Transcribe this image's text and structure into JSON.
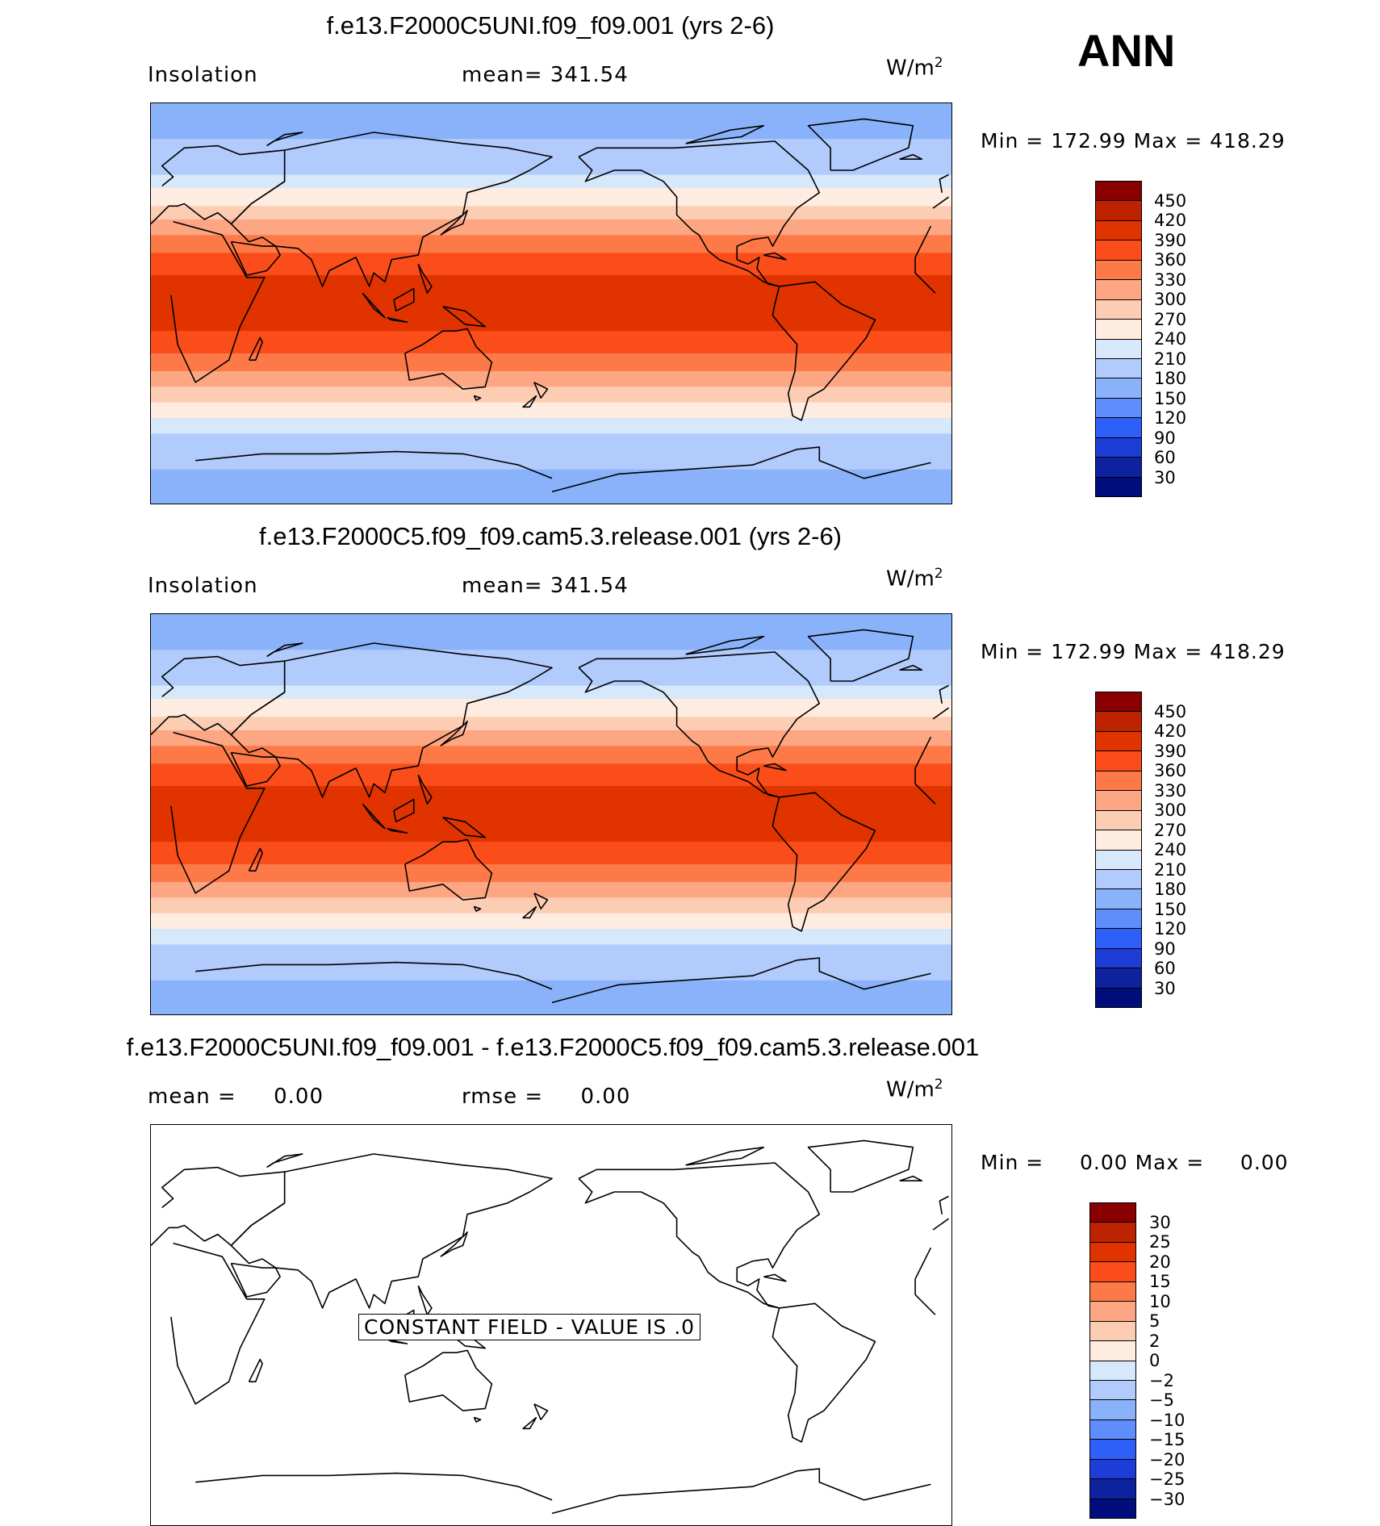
{
  "season_label": "ANN",
  "panels": [
    {
      "title": "f.e13.F2000C5UNI.f09_f09.001 (yrs 2-6)",
      "left_label": "Insolation",
      "center_label": "mean= 341.54",
      "units_base": "W/m",
      "units_exp": "2",
      "minmax": "Min = 172.99 Max = 418.29",
      "colorbar_labels": [
        "450",
        "420",
        "390",
        "360",
        "330",
        "300",
        "270",
        "240",
        "210",
        "180",
        "150",
        "120",
        "90",
        "60",
        "30"
      ],
      "map_bands": [
        {
          "lat_top": 90,
          "lat_bottom": 74,
          "level": "150-180"
        },
        {
          "lat_top": 74,
          "lat_bottom": 58,
          "level": "180-210"
        },
        {
          "lat_top": 58,
          "lat_bottom": 52,
          "level": "210-240"
        },
        {
          "lat_top": 52,
          "lat_bottom": 44,
          "level": "240-270"
        },
        {
          "lat_top": 44,
          "lat_bottom": 38,
          "level": "270-300"
        },
        {
          "lat_top": 38,
          "lat_bottom": 31,
          "level": "300-330"
        },
        {
          "lat_top": 31,
          "lat_bottom": 23,
          "level": "330-360"
        },
        {
          "lat_top": 23,
          "lat_bottom": 13,
          "level": "360-390"
        },
        {
          "lat_top": 13,
          "lat_bottom": -12,
          "level": "390-420"
        },
        {
          "lat_top": -12,
          "lat_bottom": -22,
          "level": "360-390"
        },
        {
          "lat_top": -22,
          "lat_bottom": -30,
          "level": "330-360"
        },
        {
          "lat_top": -30,
          "lat_bottom": -37,
          "level": "300-330"
        },
        {
          "lat_top": -37,
          "lat_bottom": -44,
          "level": "270-300"
        },
        {
          "lat_top": -44,
          "lat_bottom": -51,
          "level": "240-270"
        },
        {
          "lat_top": -51,
          "lat_bottom": -58,
          "level": "210-240"
        },
        {
          "lat_top": -58,
          "lat_bottom": -74,
          "level": "180-210"
        },
        {
          "lat_top": -74,
          "lat_bottom": -90,
          "level": "150-180"
        }
      ]
    },
    {
      "title": "f.e13.F2000C5.f09_f09.cam5.3.release.001 (yrs 2-6)",
      "left_label": "Insolation",
      "center_label": "mean= 341.54",
      "units_base": "W/m",
      "units_exp": "2",
      "minmax": "Min = 172.99 Max = 418.29",
      "colorbar_labels": [
        "450",
        "420",
        "390",
        "360",
        "330",
        "300",
        "270",
        "240",
        "210",
        "180",
        "150",
        "120",
        "90",
        "60",
        "30"
      ],
      "map_bands": [
        {
          "lat_top": 90,
          "lat_bottom": 74,
          "level": "150-180"
        },
        {
          "lat_top": 74,
          "lat_bottom": 58,
          "level": "180-210"
        },
        {
          "lat_top": 58,
          "lat_bottom": 52,
          "level": "210-240"
        },
        {
          "lat_top": 52,
          "lat_bottom": 44,
          "level": "240-270"
        },
        {
          "lat_top": 44,
          "lat_bottom": 38,
          "level": "270-300"
        },
        {
          "lat_top": 38,
          "lat_bottom": 31,
          "level": "300-330"
        },
        {
          "lat_top": 31,
          "lat_bottom": 23,
          "level": "330-360"
        },
        {
          "lat_top": 23,
          "lat_bottom": 13,
          "level": "360-390"
        },
        {
          "lat_top": 13,
          "lat_bottom": -12,
          "level": "390-420"
        },
        {
          "lat_top": -12,
          "lat_bottom": -22,
          "level": "360-390"
        },
        {
          "lat_top": -22,
          "lat_bottom": -30,
          "level": "330-360"
        },
        {
          "lat_top": -30,
          "lat_bottom": -37,
          "level": "300-330"
        },
        {
          "lat_top": -37,
          "lat_bottom": -44,
          "level": "270-300"
        },
        {
          "lat_top": -44,
          "lat_bottom": -51,
          "level": "240-270"
        },
        {
          "lat_top": -51,
          "lat_bottom": -58,
          "level": "210-240"
        },
        {
          "lat_top": -58,
          "lat_bottom": -74,
          "level": "180-210"
        },
        {
          "lat_top": -74,
          "lat_bottom": -90,
          "level": "150-180"
        }
      ]
    },
    {
      "title": "f.e13.F2000C5UNI.f09_f09.001 - f.e13.F2000C5.f09_f09.cam5.3.release.001",
      "left_label": "mean =     0.00",
      "center_label": "rmse =     0.00",
      "units_base": "W/m",
      "units_exp": "2",
      "minmax": "Min =     0.00 Max =     0.00",
      "colorbar_labels": [
        "30",
        "25",
        "20",
        "15",
        "10",
        "5",
        "2",
        "0",
        "−2",
        "−5",
        "−10",
        "−15",
        "−20",
        "−25",
        "−30"
      ],
      "constant_field_text": "CONSTANT FIELD - VALUE IS .0",
      "map_bands": []
    }
  ],
  "colors": {
    "main_colorbar": [
      "#8a0000",
      "#bd2300",
      "#e13300",
      "#fa4d1a",
      "#fd7a48",
      "#fda684",
      "#fdcdb3",
      "#ffece0",
      "#d7e8fb",
      "#b1cbfd",
      "#8ab2fb",
      "#5f8dfb",
      "#2e5ff9",
      "#1e3dd6",
      "#0c229f",
      "#000e7d"
    ],
    "diff_colorbar": [
      "#8a0000",
      "#bd2300",
      "#e13300",
      "#fa4d1a",
      "#fd7a48",
      "#fda684",
      "#fdcdb3",
      "#ffece0",
      "#d7e8fb",
      "#b1cbfd",
      "#8ab2fb",
      "#5f8dfb",
      "#2e5ff9",
      "#1e3dd6",
      "#0c229f",
      "#000e7d"
    ],
    "levels": {
      "390-420": "#e13300",
      "360-390": "#fa4d1a",
      "330-360": "#fd7a48",
      "300-330": "#fda684",
      "270-300": "#fdcdb3",
      "240-270": "#ffece0",
      "210-240": "#d7e8fb",
      "180-210": "#b1cbfd",
      "150-180": "#8ab2fb"
    }
  }
}
